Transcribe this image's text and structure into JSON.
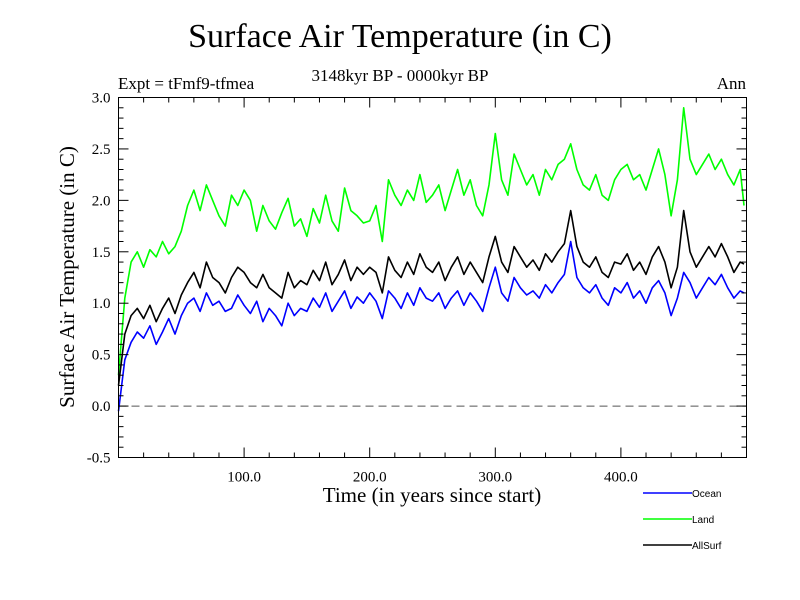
{
  "header": {
    "title": "Surface Air Temperature (in C)",
    "subtitle": "3148kyr BP - 0000kyr BP",
    "experiment": "Expt = tFmf9-tfmea",
    "season": "Ann"
  },
  "chart_data": {
    "type": "line",
    "title": "Surface Air Temperature (in C)",
    "subtitle": "3148kyr BP - 0000kyr BP",
    "xlabel": "Time (in years since start)",
    "ylabel": "Surface Air Temperature (in C)",
    "xlim": [
      0,
      500
    ],
    "ylim": [
      -0.5,
      3.0
    ],
    "x_ticks": [
      100,
      200,
      300,
      400
    ],
    "x_tick_labels": [
      "100.0",
      "200.0",
      "300.0",
      "400.0"
    ],
    "x_minor_step": 20,
    "y_ticks": [
      -0.5,
      0.0,
      0.5,
      1.0,
      1.5,
      2.0,
      2.5,
      3.0
    ],
    "y_tick_labels": [
      "-0.5",
      "0.0",
      "0.5",
      "1.0",
      "1.5",
      "2.0",
      "2.5",
      "3.0"
    ],
    "y_minor_step": 0.1,
    "reference_line": {
      "y": 0.0,
      "style": "dashed",
      "color": "#555555"
    },
    "grid": false,
    "legend_position": "bottom-right, below plot",
    "x": [
      0,
      5,
      10,
      15,
      20,
      25,
      30,
      35,
      40,
      45,
      50,
      55,
      60,
      65,
      70,
      75,
      80,
      85,
      90,
      95,
      100,
      105,
      110,
      115,
      120,
      125,
      130,
      135,
      140,
      145,
      150,
      155,
      160,
      165,
      170,
      175,
      180,
      185,
      190,
      195,
      200,
      205,
      210,
      215,
      220,
      225,
      230,
      235,
      240,
      245,
      250,
      255,
      260,
      265,
      270,
      275,
      280,
      285,
      290,
      295,
      300,
      305,
      310,
      315,
      320,
      325,
      330,
      335,
      340,
      345,
      350,
      355,
      360,
      365,
      370,
      375,
      380,
      385,
      390,
      395,
      400,
      405,
      410,
      415,
      420,
      425,
      430,
      435,
      440,
      445,
      450,
      455,
      460,
      465,
      470,
      475,
      480,
      485,
      490,
      495,
      498
    ],
    "series": [
      {
        "name": "Ocean",
        "color": "#0000ff",
        "values": [
          -0.05,
          0.45,
          0.62,
          0.72,
          0.66,
          0.78,
          0.6,
          0.72,
          0.85,
          0.7,
          0.88,
          1.0,
          1.05,
          0.92,
          1.1,
          0.98,
          1.02,
          0.92,
          0.95,
          1.08,
          0.98,
          0.9,
          1.02,
          0.82,
          0.95,
          0.88,
          0.78,
          1.0,
          0.88,
          0.95,
          0.92,
          1.05,
          0.96,
          1.1,
          0.92,
          1.02,
          1.12,
          0.95,
          1.06,
          1.0,
          1.1,
          1.02,
          0.85,
          1.12,
          1.05,
          0.95,
          1.1,
          0.98,
          1.15,
          1.05,
          1.02,
          1.1,
          0.95,
          1.05,
          1.12,
          0.98,
          1.1,
          1.02,
          0.92,
          1.15,
          1.35,
          1.1,
          1.02,
          1.25,
          1.15,
          1.08,
          1.12,
          1.05,
          1.18,
          1.1,
          1.2,
          1.28,
          1.6,
          1.25,
          1.15,
          1.1,
          1.18,
          1.05,
          0.98,
          1.15,
          1.1,
          1.2,
          1.05,
          1.12,
          1.0,
          1.15,
          1.22,
          1.1,
          0.88,
          1.05,
          1.3,
          1.2,
          1.05,
          1.15,
          1.25,
          1.18,
          1.28,
          1.15,
          1.05,
          1.12,
          1.1
        ]
      },
      {
        "name": "Land",
        "color": "#00ff00",
        "values": [
          0.3,
          1.05,
          1.4,
          1.5,
          1.35,
          1.52,
          1.45,
          1.6,
          1.48,
          1.55,
          1.7,
          1.95,
          2.1,
          1.9,
          2.15,
          2.0,
          1.85,
          1.75,
          2.05,
          1.95,
          2.1,
          2.0,
          1.7,
          1.95,
          1.8,
          1.72,
          1.88,
          2.02,
          1.75,
          1.82,
          1.65,
          1.92,
          1.78,
          2.05,
          1.8,
          1.7,
          2.12,
          1.9,
          1.85,
          1.78,
          1.8,
          1.95,
          1.6,
          2.2,
          2.05,
          1.95,
          2.1,
          2.0,
          2.25,
          1.98,
          2.05,
          2.15,
          1.9,
          2.1,
          2.3,
          2.05,
          2.2,
          1.95,
          1.85,
          2.15,
          2.65,
          2.2,
          2.05,
          2.45,
          2.3,
          2.15,
          2.25,
          2.05,
          2.3,
          2.2,
          2.35,
          2.4,
          2.55,
          2.3,
          2.15,
          2.1,
          2.25,
          2.05,
          2.0,
          2.2,
          2.3,
          2.35,
          2.2,
          2.25,
          2.1,
          2.3,
          2.5,
          2.25,
          1.85,
          2.2,
          2.9,
          2.4,
          2.25,
          2.35,
          2.45,
          2.3,
          2.4,
          2.25,
          2.15,
          2.3,
          1.95
        ]
      },
      {
        "name": "AllSurf",
        "color": "#000000",
        "values": [
          0.2,
          0.7,
          0.88,
          0.95,
          0.85,
          0.98,
          0.82,
          0.95,
          1.05,
          0.9,
          1.08,
          1.2,
          1.3,
          1.15,
          1.4,
          1.25,
          1.2,
          1.1,
          1.25,
          1.35,
          1.3,
          1.2,
          1.15,
          1.28,
          1.15,
          1.1,
          1.05,
          1.3,
          1.15,
          1.22,
          1.18,
          1.32,
          1.22,
          1.4,
          1.18,
          1.28,
          1.42,
          1.22,
          1.35,
          1.28,
          1.35,
          1.3,
          1.1,
          1.45,
          1.32,
          1.25,
          1.4,
          1.28,
          1.48,
          1.35,
          1.3,
          1.4,
          1.22,
          1.35,
          1.45,
          1.28,
          1.4,
          1.3,
          1.2,
          1.45,
          1.65,
          1.4,
          1.3,
          1.55,
          1.45,
          1.35,
          1.42,
          1.32,
          1.48,
          1.4,
          1.5,
          1.58,
          1.9,
          1.55,
          1.4,
          1.35,
          1.45,
          1.3,
          1.25,
          1.4,
          1.38,
          1.48,
          1.32,
          1.4,
          1.28,
          1.45,
          1.55,
          1.4,
          1.15,
          1.35,
          1.9,
          1.5,
          1.35,
          1.45,
          1.55,
          1.45,
          1.58,
          1.45,
          1.3,
          1.4,
          1.38
        ]
      }
    ]
  }
}
